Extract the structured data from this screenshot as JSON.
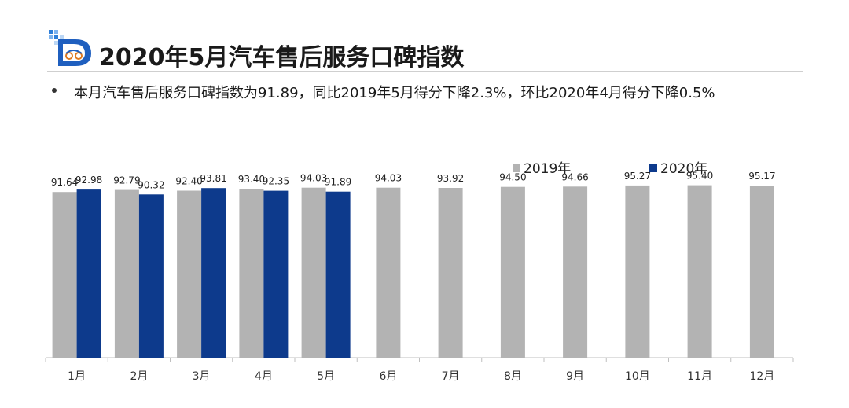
{
  "header": {
    "title": "2020年5月汽车售后服务口碑指数",
    "summary": "本月汽车售后服务口碑指数为91.89，同比2019年5月得分下降2.3%，环比2020年4月得分下降0.5%"
  },
  "colors": {
    "series_2019": "#b3b3b3",
    "series_2020": "#0d3a8c",
    "axis": "#bfbfbf"
  },
  "chart_data": {
    "type": "bar",
    "categories": [
      "1月",
      "2月",
      "3月",
      "4月",
      "5月",
      "6月",
      "7月",
      "8月",
      "9月",
      "10月",
      "11月",
      "12月"
    ],
    "series": [
      {
        "name": "2019年",
        "values": [
          91.64,
          92.79,
          92.4,
          93.4,
          94.03,
          94.03,
          93.92,
          94.5,
          94.66,
          95.27,
          95.4,
          95.17
        ],
        "labels": [
          "91.64",
          "92.79",
          "92.40",
          "93.40",
          "94.03",
          "94.03",
          "93.92",
          "94.50",
          "94.66",
          "95.27",
          "95.40",
          "95.17"
        ]
      },
      {
        "name": "2020年",
        "values": [
          92.98,
          90.32,
          93.81,
          92.35,
          91.89,
          null,
          null,
          null,
          null,
          null,
          null,
          null
        ],
        "labels": [
          "92.98",
          "90.32",
          "93.81",
          "92.35",
          "91.89",
          null,
          null,
          null,
          null,
          null,
          null,
          null
        ]
      }
    ],
    "ylim": [
      0,
      100
    ],
    "grid": false,
    "legend": "top-right",
    "title": "",
    "xlabel": "",
    "ylabel": ""
  }
}
